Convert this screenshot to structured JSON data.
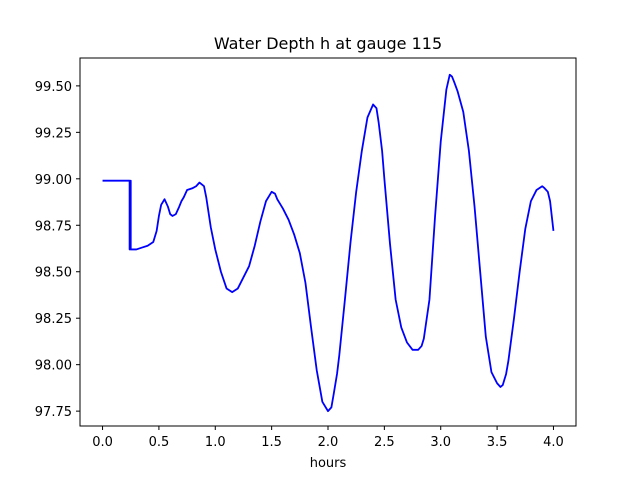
{
  "chart_data": {
    "type": "line",
    "title": "Water Depth h at gauge 115",
    "xlabel": "hours",
    "ylabel": "",
    "xlim": [
      -0.2,
      4.2
    ],
    "ylim": [
      97.67,
      99.65
    ],
    "xticks": [
      0.0,
      0.5,
      1.0,
      1.5,
      2.0,
      2.5,
      3.0,
      3.5,
      4.0
    ],
    "xtick_labels": [
      "0.0",
      "0.5",
      "1.0",
      "1.5",
      "2.0",
      "2.5",
      "3.0",
      "3.5",
      "4.0"
    ],
    "yticks": [
      97.75,
      98.0,
      98.25,
      98.5,
      98.75,
      99.0,
      99.25,
      99.5
    ],
    "ytick_labels": [
      "97.75",
      "98.00",
      "98.25",
      "98.50",
      "98.75",
      "99.00",
      "99.25",
      "99.50"
    ],
    "grid": false,
    "series": [
      {
        "color": "#0000ff",
        "x": [
          0.0,
          0.24,
          0.24,
          0.245,
          0.25,
          0.25,
          0.255,
          0.26,
          0.26,
          0.3,
          0.35,
          0.4,
          0.45,
          0.48,
          0.5,
          0.52,
          0.55,
          0.58,
          0.6,
          0.62,
          0.65,
          0.68,
          0.7,
          0.72,
          0.75,
          0.8,
          0.83,
          0.86,
          0.9,
          0.92,
          0.94,
          0.96,
          0.98,
          1.0,
          1.05,
          1.1,
          1.15,
          1.2,
          1.25,
          1.3,
          1.35,
          1.4,
          1.45,
          1.5,
          1.53,
          1.55,
          1.58,
          1.6,
          1.65,
          1.7,
          1.75,
          1.8,
          1.85,
          1.9,
          1.95,
          2.0,
          2.03,
          2.05,
          2.08,
          2.1,
          2.15,
          2.2,
          2.25,
          2.3,
          2.35,
          2.4,
          2.43,
          2.45,
          2.48,
          2.5,
          2.55,
          2.6,
          2.65,
          2.7,
          2.75,
          2.8,
          2.83,
          2.85,
          2.9,
          2.95,
          3.0,
          3.05,
          3.08,
          3.1,
          3.12,
          3.15,
          3.2,
          3.25,
          3.3,
          3.35,
          3.4,
          3.45,
          3.5,
          3.53,
          3.55,
          3.58,
          3.6,
          3.65,
          3.7,
          3.75,
          3.8,
          3.85,
          3.9,
          3.92,
          3.95,
          3.97,
          4.0
        ],
        "y": [
          98.99,
          98.99,
          98.62,
          98.62,
          98.99,
          98.62,
          98.62,
          98.62,
          98.62,
          98.62,
          98.63,
          98.64,
          98.66,
          98.72,
          98.8,
          98.86,
          98.89,
          98.85,
          98.81,
          98.8,
          98.81,
          98.85,
          98.88,
          98.9,
          98.94,
          98.95,
          98.96,
          98.98,
          98.96,
          98.9,
          98.82,
          98.74,
          98.68,
          98.62,
          98.5,
          98.41,
          98.39,
          98.41,
          98.47,
          98.53,
          98.64,
          98.77,
          98.88,
          98.93,
          98.92,
          98.89,
          98.86,
          98.84,
          98.78,
          98.7,
          98.6,
          98.44,
          98.2,
          97.97,
          97.8,
          97.75,
          97.77,
          97.84,
          97.95,
          98.05,
          98.35,
          98.66,
          98.93,
          99.15,
          99.33,
          99.4,
          99.38,
          99.3,
          99.15,
          99.0,
          98.65,
          98.35,
          98.2,
          98.12,
          98.08,
          98.08,
          98.1,
          98.14,
          98.35,
          98.8,
          99.2,
          99.48,
          99.56,
          99.55,
          99.52,
          99.47,
          99.36,
          99.15,
          98.85,
          98.5,
          98.15,
          97.96,
          97.9,
          97.88,
          97.89,
          97.95,
          98.02,
          98.25,
          98.5,
          98.73,
          98.88,
          98.94,
          98.96,
          98.95,
          98.93,
          98.88,
          98.72
        ]
      }
    ]
  }
}
